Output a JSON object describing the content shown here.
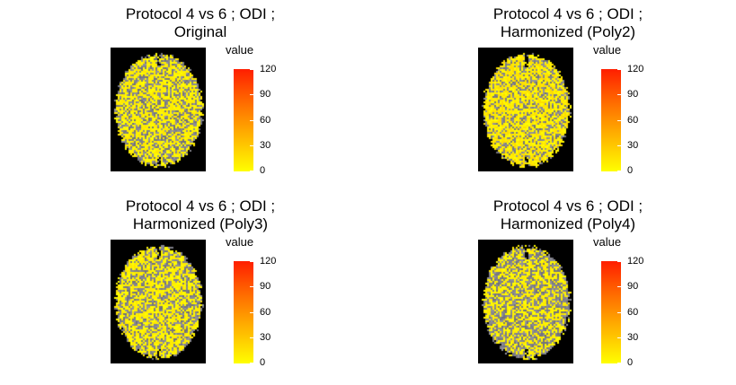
{
  "figure": {
    "panels": [
      {
        "title_line1": "Protocol 4 vs 6 ; ODI ;",
        "title_line2": "Original",
        "legend_title": "value",
        "seed": 11,
        "style": "original"
      },
      {
        "title_line1": "Protocol 4 vs 6 ; ODI ;",
        "title_line2": "Harmonized (Poly2)",
        "legend_title": "value",
        "seed": 23,
        "style": "poly2"
      },
      {
        "title_line1": "Protocol 4 vs 6 ; ODI ;",
        "title_line2": "Harmonized (Poly3)",
        "legend_title": "value",
        "seed": 37,
        "style": "poly3"
      },
      {
        "title_line1": "Protocol 4 vs 6 ; ODI ;",
        "title_line2": "Harmonized (Poly4)",
        "legend_title": "value",
        "seed": 51,
        "style": "poly4"
      }
    ]
  },
  "chart_data": [
    {
      "type": "heatmap",
      "title": "Protocol 4 vs 6 ; ODI ; Original",
      "legend_title": "value",
      "colorbar_range": [
        0,
        120
      ],
      "colorbar_ticks": [
        0,
        30,
        60,
        90,
        120
      ],
      "colors": {
        "low": "#ffff00",
        "high": "#ff1e00",
        "background": "#000000",
        "missing": "#808080"
      }
    },
    {
      "type": "heatmap",
      "title": "Protocol 4 vs 6 ; ODI ; Harmonized (Poly2)",
      "legend_title": "value",
      "colorbar_range": [
        0,
        120
      ],
      "colorbar_ticks": [
        0,
        30,
        60,
        90,
        120
      ],
      "colors": {
        "low": "#ffff00",
        "high": "#ff1e00",
        "background": "#000000",
        "missing": "#808080"
      }
    },
    {
      "type": "heatmap",
      "title": "Protocol 4 vs 6 ; ODI ; Harmonized (Poly3)",
      "legend_title": "value",
      "colorbar_range": [
        0,
        120
      ],
      "colorbar_ticks": [
        0,
        30,
        60,
        90,
        120
      ],
      "colors": {
        "low": "#ffff00",
        "high": "#ff1e00",
        "background": "#000000",
        "missing": "#808080"
      }
    },
    {
      "type": "heatmap",
      "title": "Protocol 4 vs 6 ; ODI ; Harmonized (Poly4)",
      "legend_title": "value",
      "colorbar_range": [
        0,
        120
      ],
      "colorbar_ticks": [
        0,
        30,
        60,
        90,
        120
      ],
      "colors": {
        "low": "#ffff00",
        "high": "#ff1e00",
        "background": "#000000",
        "missing": "#808080"
      }
    }
  ]
}
